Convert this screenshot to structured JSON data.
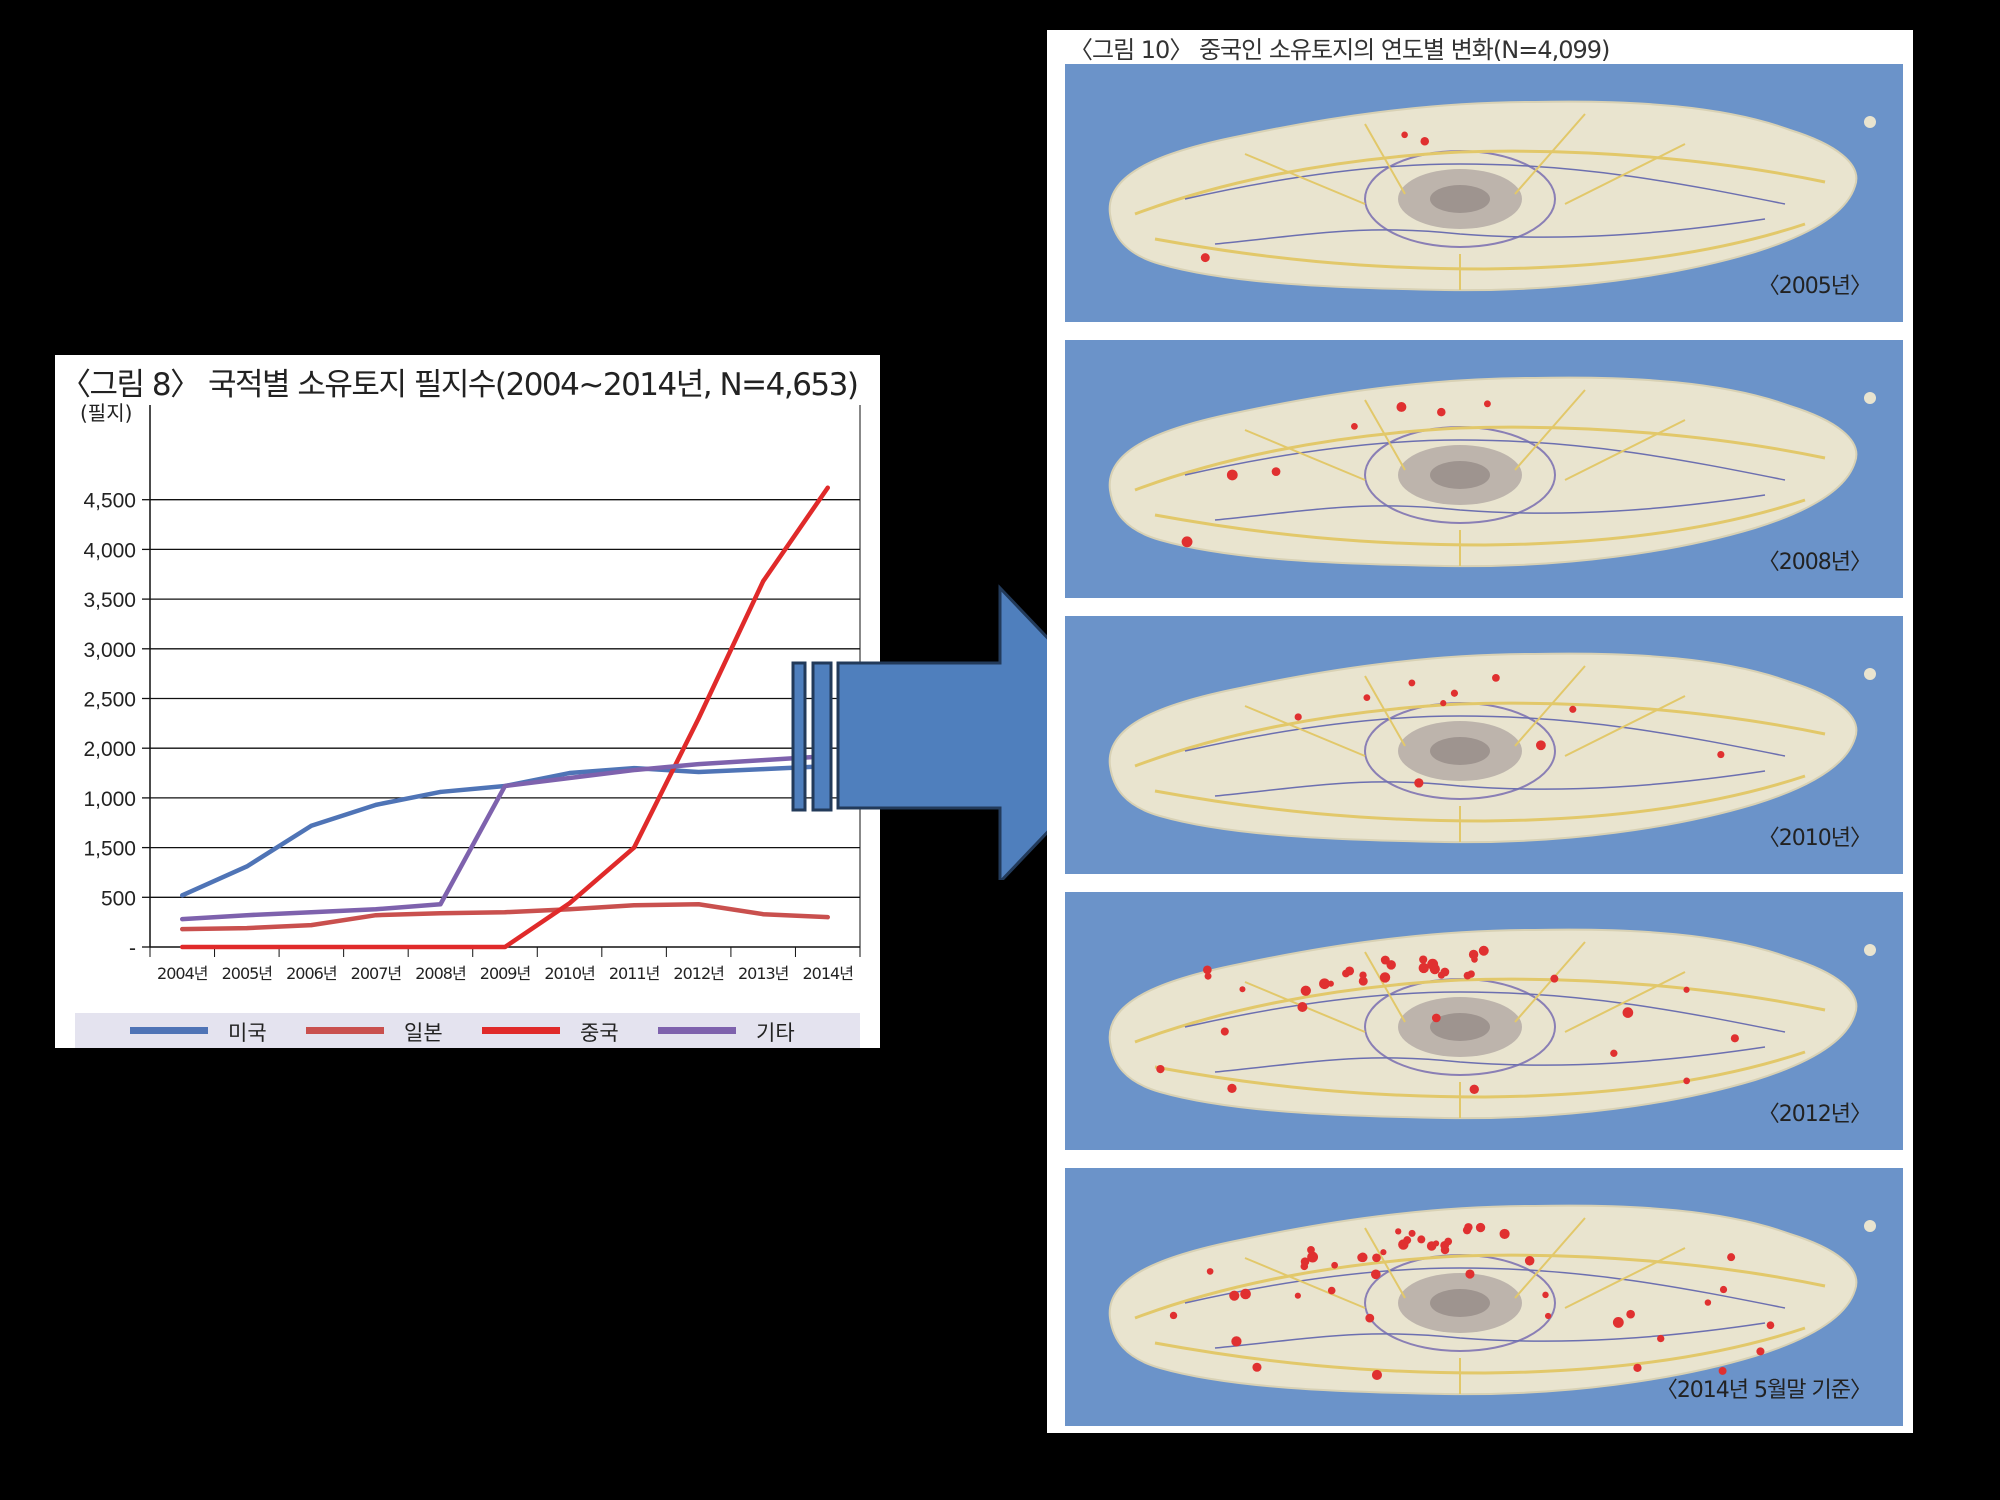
{
  "left_figure": {
    "title": "〈그림 8〉 국적별 소유토지 필지수(2004~2014년, N=4,653)"
  },
  "chart_data": {
    "type": "line",
    "title": "〈그림 8〉 국적별 소유토지 필지수(2004~2014년, N=4,653)",
    "ylabel": "(필지)",
    "xlabel": "",
    "categories": [
      "2004년",
      "2005년",
      "2006년",
      "2007년",
      "2008년",
      "2009년",
      "2010년",
      "2011년",
      "2012년",
      "2013년",
      "2014년"
    ],
    "ytick_labels": [
      "-",
      "500",
      "1,500",
      "1,000",
      "2,000",
      "2,500",
      "3,000",
      "3,500",
      "4,000",
      "4,500"
    ],
    "ylim": [
      0,
      5000
    ],
    "grid": true,
    "legend_position": "bottom",
    "series": [
      {
        "name": "미국",
        "color": "#4f74b6",
        "values": [
          520,
          810,
          1220,
          1430,
          1560,
          1620,
          1750,
          1800,
          1760,
          1790,
          1820
        ]
      },
      {
        "name": "일본",
        "color": "#c9504e",
        "values": [
          180,
          190,
          220,
          320,
          340,
          350,
          380,
          420,
          430,
          330,
          300
        ]
      },
      {
        "name": "중국",
        "color": "#e02a2a",
        "values": [
          0,
          0,
          0,
          0,
          0,
          0,
          440,
          1000,
          2300,
          3680,
          4620
        ]
      },
      {
        "name": "기타",
        "color": "#7e62ad",
        "values": [
          280,
          320,
          350,
          380,
          430,
          1620,
          1700,
          1780,
          1840,
          1880,
          1920
        ]
      }
    ]
  },
  "legend": [
    {
      "label": "미국",
      "color": "#4f74b6"
    },
    {
      "label": "일본",
      "color": "#c9504e"
    },
    {
      "label": "중국",
      "color": "#e02a2a"
    },
    {
      "label": "기타",
      "color": "#7e62ad"
    }
  ],
  "arrow": {
    "color": "#4f7fbd",
    "border": "#223a5a"
  },
  "right_figure": {
    "title": "〈그림 10〉 중국인 소유토지의 연도별 변화(N=4,099)",
    "maps": [
      {
        "label": "〈2005년〉",
        "dot_count": 3
      },
      {
        "label": "〈2008년〉",
        "dot_count": 7
      },
      {
        "label": "〈2010년〉",
        "dot_count": 10
      },
      {
        "label": "〈2012년〉",
        "dot_count": 36
      },
      {
        "label": "〈2014년 5월말 기준〉",
        "dot_count": 48
      }
    ],
    "colors": {
      "sea": "#6b93c9",
      "land": "#e9e4cf",
      "mountain": "#b5aca6",
      "roads": "#e2c86a",
      "dots": "#e03030"
    }
  }
}
